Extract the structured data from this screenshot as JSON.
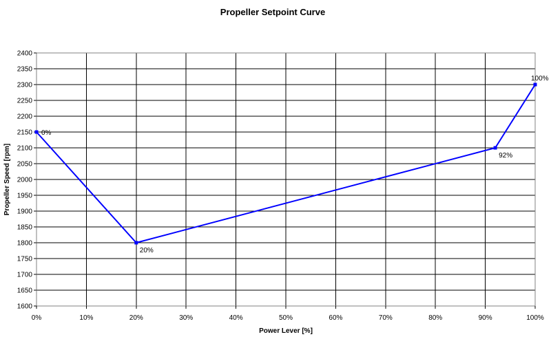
{
  "chart_data": {
    "type": "line",
    "title": "Propeller Setpoint Curve",
    "xlabel": "Power Lever [%]",
    "ylabel": "Propeller Speed [rpm]",
    "xlim": [
      0,
      100
    ],
    "ylim": [
      1600,
      2400
    ],
    "x_ticks": [
      0,
      10,
      20,
      30,
      40,
      50,
      60,
      70,
      80,
      90,
      100
    ],
    "x_tick_labels": [
      "0%",
      "10%",
      "20%",
      "30%",
      "40%",
      "50%",
      "60%",
      "70%",
      "80%",
      "90%",
      "100%"
    ],
    "y_ticks": [
      1600,
      1650,
      1700,
      1750,
      1800,
      1850,
      1900,
      1950,
      2000,
      2050,
      2100,
      2150,
      2200,
      2250,
      2300,
      2350,
      2400
    ],
    "y_tick_labels": [
      "1600",
      "1650",
      "1700",
      "1750",
      "1800",
      "1850",
      "1900",
      "1950",
      "2000",
      "2050",
      "2100",
      "2150",
      "2200",
      "2250",
      "2300",
      "2350",
      "2400"
    ],
    "grid": true,
    "legend": "none",
    "series": [
      {
        "color": "#0000ff",
        "x": [
          0,
          20,
          92,
          100
        ],
        "y": [
          2150,
          1800,
          2100,
          2300
        ],
        "point_labels": [
          "0%",
          "20%",
          "92%",
          "100%"
        ]
      }
    ]
  }
}
